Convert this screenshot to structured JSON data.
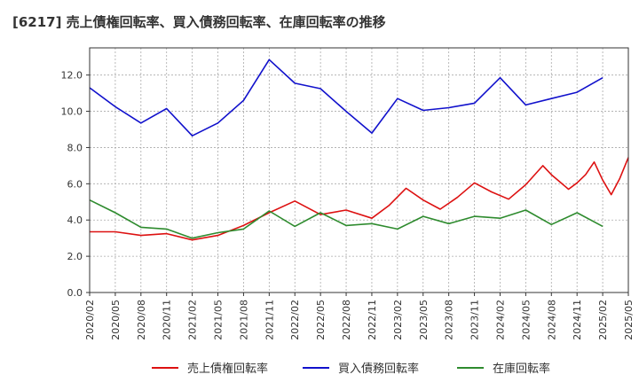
{
  "chart_data": {
    "type": "line",
    "title": "[6217]  売上債権回転率、買入債務回転率、在庫回転率の推移",
    "xlabel": "",
    "ylabel": "",
    "ylim": [
      0,
      13.5
    ],
    "yticks": [
      "0.0",
      "2.0",
      "4.0",
      "6.0",
      "8.0",
      "10.0",
      "12.0"
    ],
    "ytick_values": [
      0,
      2,
      4,
      6,
      8,
      10,
      12
    ],
    "xticks": [
      "2020/02",
      "2020/05",
      "2020/08",
      "2020/11",
      "2021/02",
      "2021/05",
      "2021/08",
      "2021/11",
      "2022/02",
      "2022/05",
      "2022/08",
      "2022/11",
      "2023/02",
      "2023/05",
      "2023/08",
      "2023/11",
      "2024/02",
      "2024/05",
      "2024/08",
      "2024/11",
      "2025/02",
      "2025/05"
    ],
    "x_month_range": [
      0,
      63
    ],
    "grid": true,
    "legend_position": "bottom",
    "series": [
      {
        "name": "売上債権回転率",
        "color": "#dd1111",
        "x": [
          0,
          3,
          6,
          9,
          12,
          15,
          18,
          21,
          24,
          27,
          30,
          33,
          35,
          37,
          39,
          41,
          43,
          45,
          47,
          49,
          51,
          53,
          54,
          56,
          57,
          58,
          59,
          60
        ],
        "values": [
          3.35,
          3.35,
          3.15,
          3.25,
          2.9,
          3.15,
          3.7,
          4.4,
          5.05,
          4.3,
          4.55,
          4.1,
          4.8,
          5.75,
          5.1,
          4.6,
          5.25,
          6.05,
          5.55,
          5.15,
          5.95,
          7.0,
          6.5,
          5.7,
          6.05,
          6.5,
          7.2,
          6.2
        ]
      },
      {
        "name": "買入債務回転率",
        "color": "#1111cc",
        "x": [
          0,
          3,
          6,
          9,
          12,
          15,
          18,
          21,
          24,
          27,
          30,
          33,
          36,
          39,
          42,
          45,
          48,
          51,
          54,
          57,
          60
        ],
        "values": [
          11.3,
          10.25,
          9.35,
          10.15,
          8.65,
          9.35,
          10.6,
          12.85,
          11.55,
          11.25,
          10.0,
          8.8,
          10.7,
          10.05,
          10.2,
          10.45,
          11.85,
          10.35,
          10.7,
          11.05,
          11.85
        ]
      },
      {
        "name": "在庫回転率",
        "color": "#2e8b2e",
        "x": [
          0,
          3,
          6,
          9,
          12,
          15,
          18,
          21,
          24,
          27,
          30,
          33,
          36,
          39,
          42,
          45,
          48,
          51,
          54,
          57,
          60
        ],
        "values": [
          5.1,
          4.4,
          3.6,
          3.5,
          3.0,
          3.3,
          3.5,
          4.5,
          3.65,
          4.4,
          3.7,
          3.8,
          3.5,
          4.2,
          3.8,
          4.2,
          4.1,
          4.55,
          3.75,
          4.4,
          3.65
        ]
      }
    ],
    "red_tail": {
      "x": [
        60,
        61,
        62,
        63
      ],
      "values": [
        6.2,
        5.4,
        6.3,
        7.45
      ]
    }
  }
}
